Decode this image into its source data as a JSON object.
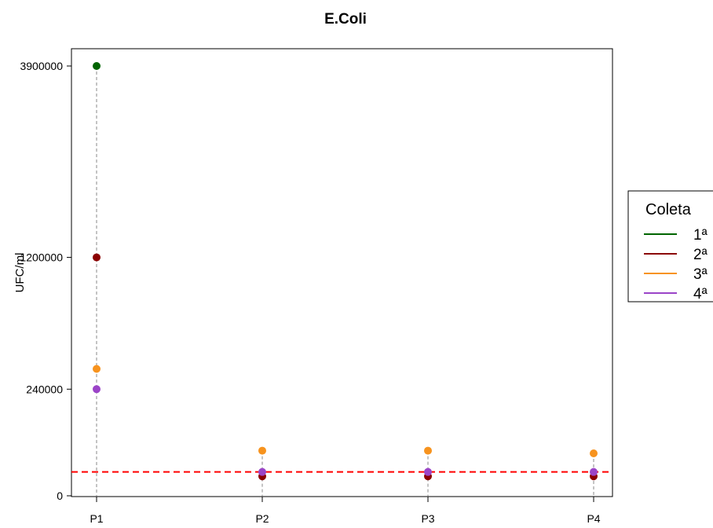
{
  "chart_data": {
    "type": "scatter",
    "title": "E.Coli",
    "xlabel": "",
    "ylabel": "UFC/ml",
    "categories": [
      "P1",
      "P2",
      "P3",
      "P4"
    ],
    "y_ticks": [
      0,
      240000,
      1200000,
      3900000
    ],
    "y_tick_labels": [
      "0",
      "240000",
      "1200000",
      "3900000"
    ],
    "ylim": [
      0,
      4050000
    ],
    "y_scale": "sqrt",
    "reference_line": {
      "value": 12000,
      "color": "#ff0000",
      "style": "dashed"
    },
    "series": [
      {
        "name": "1ª",
        "color": "#006400",
        "values": [
          3900000,
          null,
          null,
          null
        ]
      },
      {
        "name": "2ª",
        "color": "#8b0000",
        "values": [
          1200000,
          8000,
          8000,
          8000
        ]
      },
      {
        "name": "3ª",
        "color": "#f7931e",
        "values": [
          340000,
          43000,
          43000,
          38000
        ]
      },
      {
        "name": "4ª",
        "color": "#9b44c8",
        "values": [
          240000,
          12000,
          12000,
          12000
        ]
      }
    ],
    "legend": {
      "title": "Coleta",
      "position": "right"
    },
    "grid": false
  }
}
